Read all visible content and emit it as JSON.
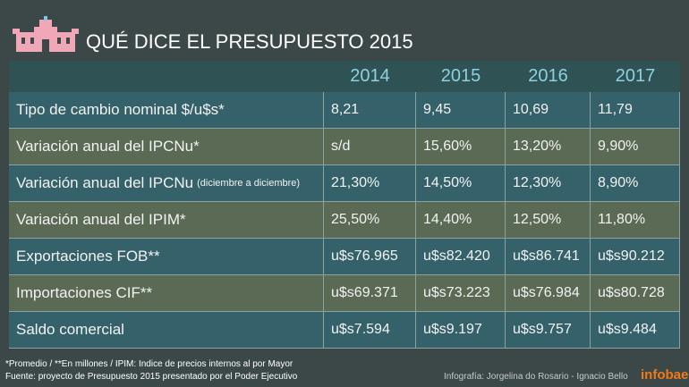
{
  "header": {
    "title": "QUÉ DICE EL PRESUPUESTO 2015"
  },
  "table": {
    "columns": [
      "2014",
      "2015",
      "2016",
      "2017"
    ],
    "rows": [
      {
        "label": "Tipo de cambio nominal $/u$s*",
        "values": [
          "8,21",
          "9,45",
          "10,69",
          "11,79"
        ]
      },
      {
        "label": "Variación anual del IPCNu*",
        "values": [
          "s/d",
          "15,60%",
          "13,20%",
          "9,90%"
        ]
      },
      {
        "label": "Variación anual del IPCNu",
        "label_note": "(diciembre a diciembre)",
        "values": [
          "21,30%",
          "14,50%",
          "12,30%",
          "8,90%"
        ]
      },
      {
        "label": "Variación anual del IPIM*",
        "values": [
          "25,50%",
          "14,40%",
          "12,50%",
          "11,80%"
        ]
      },
      {
        "label": "Exportaciones FOB**",
        "values": [
          "u$s76.965",
          "u$s82.420",
          "u$s86.741",
          "u$s90.212"
        ]
      },
      {
        "label": "Importaciones CIF**",
        "values": [
          "u$s69.371",
          "u$s73.223",
          "u$s76.984",
          "u$s80.728"
        ]
      },
      {
        "label": "Saldo comercial",
        "values": [
          "u$s7.594",
          "u$s9.197",
          "u$s9.757",
          "u$s9.484"
        ]
      }
    ]
  },
  "footer": {
    "notes": [
      "*Promedio  /  **En millones / IPIM: Indice de precios internos al por Mayor",
      "Fuente: proyecto de Presupuesto 2015 presentado por el Poder Ejecutivo"
    ],
    "credit": "Infografía: Jorgelina do Rosario - Ignacio Bello",
    "logo": "infobae"
  }
}
